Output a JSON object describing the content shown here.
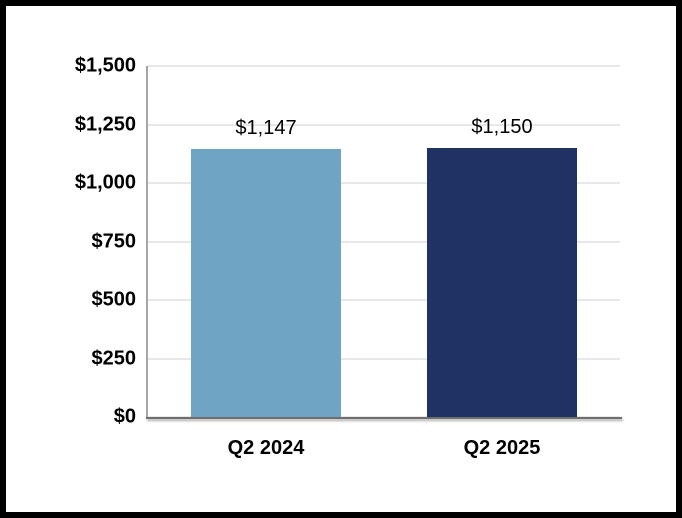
{
  "chart_data": {
    "type": "bar",
    "title": "",
    "xlabel": "",
    "ylabel": "",
    "categories": [
      "Q2 2024",
      "Q2 2025"
    ],
    "values": [
      1147,
      1150
    ],
    "value_labels": [
      "$1,147",
      "$1,150"
    ],
    "bar_colors": [
      "#6FA4C5",
      "#1F3263"
    ],
    "ylim": [
      0,
      1500
    ],
    "yticks": [
      {
        "value": 1500,
        "label": "$1,500"
      },
      {
        "value": 1250,
        "label": "$1,250"
      },
      {
        "value": 1000,
        "label": "$1,000"
      },
      {
        "value": 750,
        "label": "$750"
      },
      {
        "value": 500,
        "label": "$500"
      },
      {
        "value": 250,
        "label": "$250"
      },
      {
        "value": 0,
        "label": "$0"
      }
    ],
    "grid": true,
    "legend": false
  },
  "colors": {
    "background": "#FFFFFF",
    "frame_border": "#000000",
    "gridline": "#E8E8E8",
    "y_axis_line": "#A6A6A6",
    "x_axis_line": "#6E6E6E",
    "text": "#000000"
  }
}
